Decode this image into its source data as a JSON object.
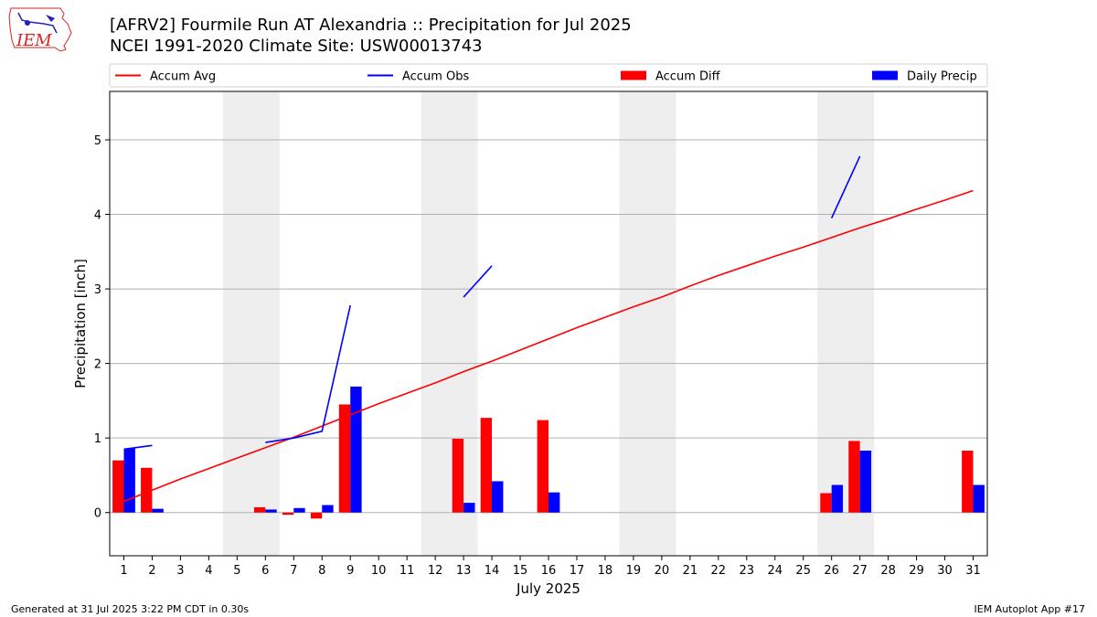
{
  "logo": {
    "text": "IEM",
    "color": "#d22"
  },
  "title_line1": "[AFRV2] Fourmile Run  AT Alexandria :: Precipitation for Jul 2025",
  "title_line2": "NCEI 1991-2020 Climate Site: USW00013743",
  "footer_left": "Generated at 31 Jul 2025 3:22 PM CDT in 0.30s",
  "footer_right": "IEM Autoplot App #17",
  "chart_data": {
    "type": "bar",
    "xlabel": "July 2025",
    "ylabel": "Precipitation [inch]",
    "xlim": [
      0.5,
      31.5
    ],
    "ylim": [
      -0.58,
      5.65
    ],
    "yticks": [
      0,
      1,
      2,
      3,
      4,
      5
    ],
    "grid": "horizontal",
    "legend_position": "top",
    "categories": [
      "1",
      "2",
      "3",
      "4",
      "5",
      "6",
      "7",
      "8",
      "9",
      "10",
      "11",
      "12",
      "13",
      "14",
      "15",
      "16",
      "17",
      "18",
      "19",
      "20",
      "21",
      "22",
      "23",
      "24",
      "25",
      "26",
      "27",
      "28",
      "29",
      "30",
      "31"
    ],
    "weekend_shading": [
      [
        4.5,
        6.5
      ],
      [
        11.5,
        13.5
      ],
      [
        18.5,
        20.5
      ],
      [
        25.5,
        27.5
      ]
    ],
    "colors": {
      "accum_avg": "#ff0000",
      "accum_obs": "#0000ff",
      "accum_diff": "#ff0000",
      "daily_precip": "#0000ff",
      "weekend": "#eeeeee"
    },
    "series": [
      {
        "name": "Accum Avg",
        "kind": "line",
        "values": [
          0.15,
          0.3,
          0.45,
          0.59,
          0.73,
          0.87,
          1.01,
          1.16,
          1.31,
          1.46,
          1.6,
          1.74,
          1.89,
          2.03,
          2.18,
          2.33,
          2.48,
          2.62,
          2.76,
          2.89,
          3.04,
          3.18,
          3.31,
          3.44,
          3.56,
          3.69,
          3.82,
          3.94,
          4.07,
          4.19,
          4.32
        ]
      },
      {
        "name": "Accum Obs",
        "kind": "line",
        "values": [
          0.85,
          0.9,
          null,
          null,
          null,
          0.94,
          1.0,
          1.09,
          2.78,
          null,
          null,
          null,
          2.89,
          3.31,
          null,
          null,
          null,
          null,
          null,
          null,
          null,
          null,
          null,
          null,
          null,
          3.95,
          4.78,
          null,
          null,
          null,
          null
        ]
      },
      {
        "name": "Accum Diff",
        "kind": "bar",
        "values": [
          0.7,
          0.6,
          0,
          0,
          0,
          0.07,
          -0.03,
          -0.08,
          1.45,
          0,
          0,
          0,
          0.99,
          1.27,
          0,
          1.24,
          0,
          0,
          0,
          0,
          0,
          0,
          0,
          0,
          0,
          0.26,
          0.96,
          0,
          0,
          0,
          0.83
        ]
      },
      {
        "name": "Daily Precip",
        "kind": "bar",
        "values": [
          0.86,
          0.05,
          0,
          0,
          0,
          0.04,
          0.06,
          0.1,
          1.69,
          0,
          0,
          0,
          0.13,
          0.42,
          0,
          0.27,
          0,
          0,
          0,
          0,
          0,
          0,
          0,
          0,
          0,
          0.37,
          0.83,
          0,
          0,
          0,
          0.37
        ]
      }
    ]
  }
}
